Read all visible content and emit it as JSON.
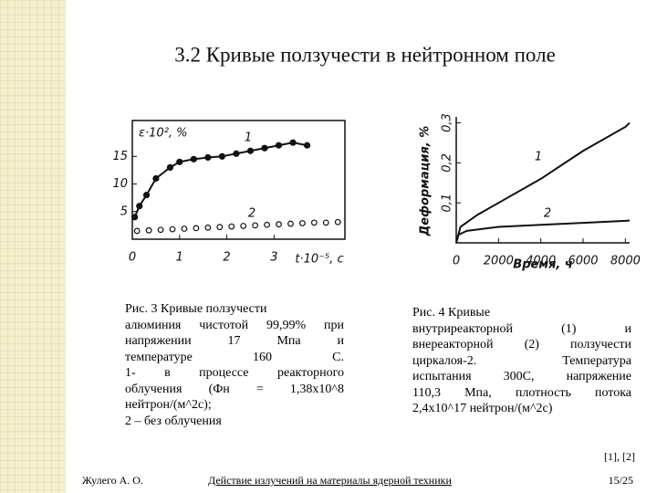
{
  "title": "3.2 Кривые ползучести в нейтронном поле",
  "chart_data": [
    {
      "type": "scatter",
      "ylabel": "ε·10², %",
      "xlabel": "t·10⁻⁵, с",
      "xlim": [
        0,
        4.5
      ],
      "ylim": [
        0,
        21.5
      ],
      "xticks": [
        0,
        1,
        2,
        3
      ],
      "yticks": [
        5,
        10,
        15
      ],
      "annotations": [
        "1",
        "2"
      ],
      "color": "#111111",
      "series": [
        {
          "marker": "filled",
          "connect": true,
          "x": [
            0.05,
            0.15,
            0.3,
            0.5,
            0.8,
            1.0,
            1.3,
            1.6,
            1.9,
            2.2,
            2.5,
            2.8,
            3.1,
            3.4,
            3.7
          ],
          "values": [
            4,
            6,
            8,
            11,
            13,
            14,
            14.5,
            14.8,
            15,
            15.5,
            16,
            16.5,
            17,
            17.5,
            17
          ]
        },
        {
          "marker": "hollow",
          "connect": false,
          "x": [
            0.1,
            0.35,
            0.6,
            0.85,
            1.1,
            1.35,
            1.6,
            1.85,
            2.1,
            2.35,
            2.6,
            2.85,
            3.1,
            3.35,
            3.6,
            3.85,
            4.1,
            4.35
          ],
          "values": [
            1.5,
            1.6,
            1.7,
            1.8,
            1.9,
            2.0,
            2.1,
            2.2,
            2.3,
            2.4,
            2.5,
            2.6,
            2.7,
            2.8,
            2.9,
            3.0,
            3.0,
            3.1
          ]
        }
      ]
    },
    {
      "type": "line",
      "ylabel": "Деформация, %",
      "xlabel": "Время, ч",
      "xlim": [
        0,
        8200
      ],
      "ylim": [
        0,
        0.315
      ],
      "xticks": [
        0,
        2000,
        4000,
        6000,
        8000
      ],
      "yticks": [
        {
          "value": 0.1,
          "label": "0,1"
        },
        {
          "value": 0.2,
          "label": "0,2"
        },
        {
          "value": 0.3,
          "label": "0,3"
        }
      ],
      "annotations": [
        "1",
        "2"
      ],
      "color": "#111111",
      "series": [
        {
          "x": [
            0,
            200,
            1000,
            2000,
            4000,
            6000,
            8000,
            8200
          ],
          "values": [
            0,
            0.04,
            0.07,
            0.1,
            0.16,
            0.23,
            0.29,
            0.3
          ]
        },
        {
          "x": [
            0,
            100,
            500,
            2000,
            4000,
            6000,
            8000,
            8200
          ],
          "values": [
            0,
            0.02,
            0.03,
            0.04,
            0.045,
            0.05,
            0.055,
            0.056
          ]
        }
      ]
    }
  ],
  "captions": [
    [
      "Рис. 3 Кривые ползучести",
      "алюминия чистотой 99,99% при",
      "напряжении 17 Мпа и",
      "температуре 160 С.",
      "1- в процессе реакторного",
      "облучения (Фн = 1,38х10^8",
      "нейтрон/(м^2с);",
      "2 – без облучения"
    ],
    [
      "Рис. 4 Кривые",
      "внутриреакторной (1) и",
      "внереакторной (2) ползучести",
      "циркалоя-2. Температура",
      "испытания 300С, напряжение",
      "110,3 Мпа, плотность потока",
      "2,4х10^17 нейтрон/(м^2с)"
    ]
  ],
  "references": "[1], [2]",
  "footer": {
    "author": "Жулего А. О.",
    "course": "Действие излучений на материалы ядерной техники",
    "page": "15/25"
  }
}
